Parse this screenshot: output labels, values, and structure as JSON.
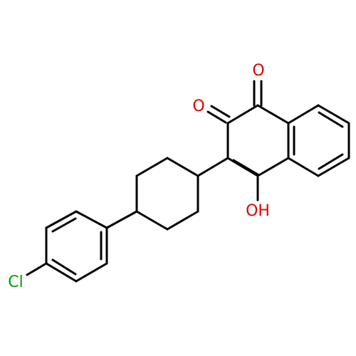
{
  "labels": [
    "O",
    "O",
    "OH",
    "Cl"
  ]
}
